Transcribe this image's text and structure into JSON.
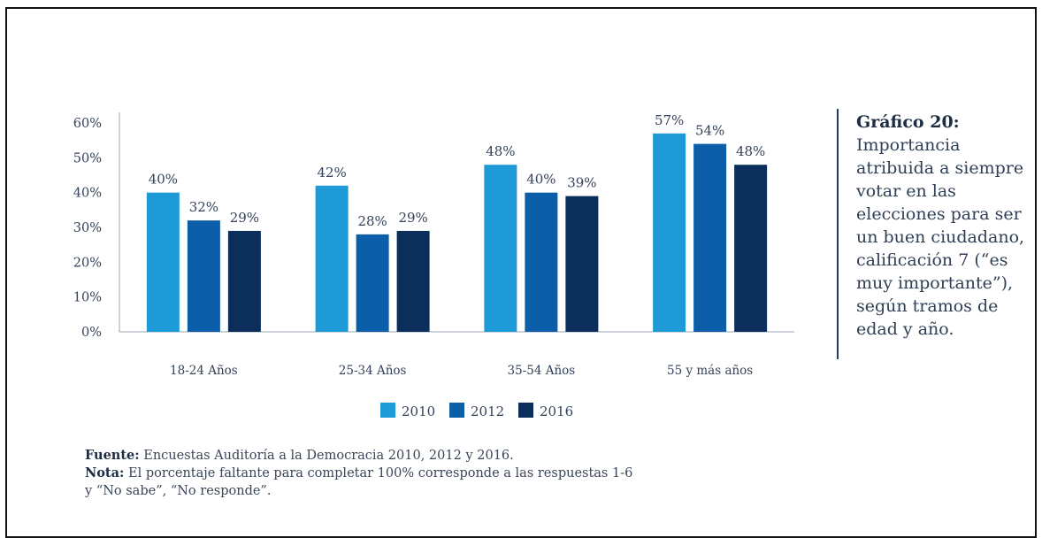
{
  "caption": {
    "title": "Gráfico 20:",
    "text": "Importancia\natribuida a siempre\nvotar en las\nelecciones para ser\nun buen ciudadano,\ncalificación 7 (“es\nmuy importante”),\nsegún tramos de\nedad y año."
  },
  "footer": {
    "source_label": "Fuente:",
    "source_text": " Encuestas Auditoría a la Democracia 2010, 2012 y 2016.",
    "note_label": "Nota:",
    "note_text": " El porcentaje faltante para completar 100% corresponde a las respuestas 1-6",
    "note_text_2": "y “No sabe”, “No responde”."
  },
  "chart_data": {
    "type": "bar",
    "categories": [
      "18-24 Años",
      "25-34 Años",
      "35-54 Años",
      "55 y más años"
    ],
    "series": [
      {
        "name": "2010",
        "color": "#1e9ad6",
        "values": [
          40,
          42,
          48,
          57
        ],
        "labels": [
          "40%",
          "42%",
          "48%",
          "57%"
        ]
      },
      {
        "name": "2012",
        "color": "#0d5ea8",
        "values": [
          32,
          28,
          40,
          54
        ],
        "labels": [
          "32%",
          "28%",
          "40%",
          "54%"
        ]
      },
      {
        "name": "2016",
        "color": "#0b2f5a",
        "values": [
          29,
          29,
          39,
          48
        ],
        "labels": [
          "29%",
          "29%",
          "39%",
          "48%"
        ]
      }
    ],
    "yticks": [
      0,
      10,
      20,
      30,
      40,
      50,
      60
    ],
    "ytick_labels": [
      "0%",
      "10%",
      "20%",
      "30%",
      "40%",
      "50%",
      "60%"
    ],
    "ylim": [
      0,
      63
    ],
    "grid": false,
    "legend_position": "bottom"
  }
}
